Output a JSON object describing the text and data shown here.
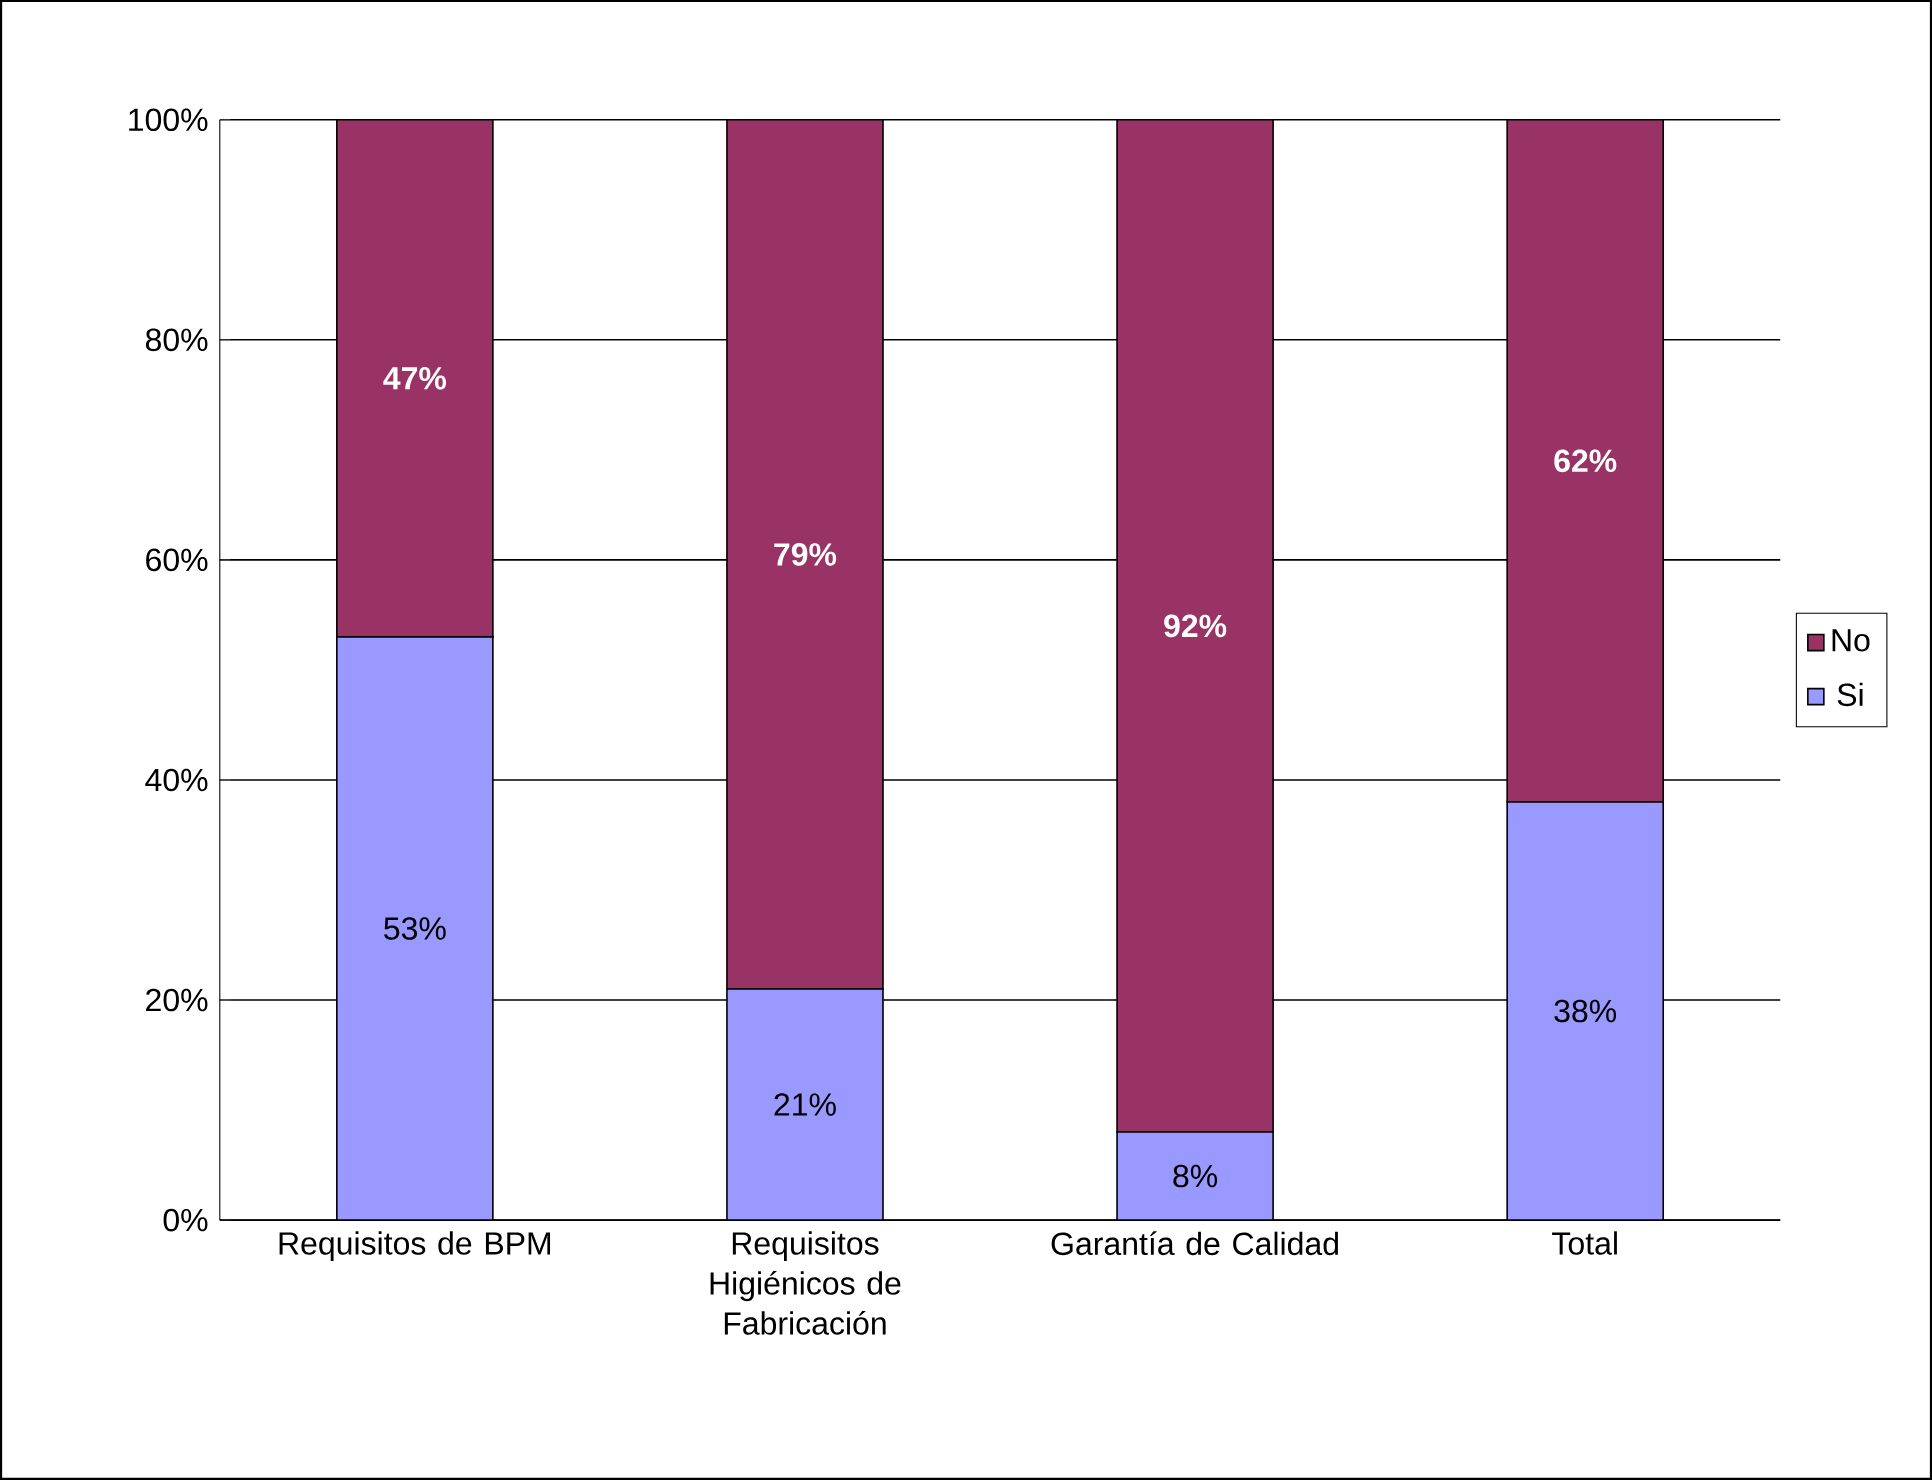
{
  "chart_data": {
    "type": "bar",
    "stacked": true,
    "categories": [
      "Requisitos de BPM",
      "Requisitos Higiénicos de Fabricación",
      "Garantía de Calidad",
      "Total"
    ],
    "series": [
      {
        "name": "Si",
        "color": "#9999ff",
        "values": [
          53,
          21,
          8,
          38
        ],
        "value_labels": [
          "53%",
          "21%",
          "8%",
          "38%"
        ]
      },
      {
        "name": "No",
        "color": "#993366",
        "values": [
          47,
          79,
          92,
          62
        ],
        "value_labels": [
          "47%",
          "79%",
          "92%",
          "62%"
        ]
      }
    ],
    "ylim": [
      0,
      100
    ],
    "yticks": [
      {
        "value": 0,
        "label": "0%"
      },
      {
        "value": 20,
        "label": "20%"
      },
      {
        "value": 40,
        "label": "40%"
      },
      {
        "value": 60,
        "label": "60%"
      },
      {
        "value": 80,
        "label": "80%"
      },
      {
        "value": 100,
        "label": "100%"
      }
    ],
    "grid": "y",
    "legend": "right"
  }
}
